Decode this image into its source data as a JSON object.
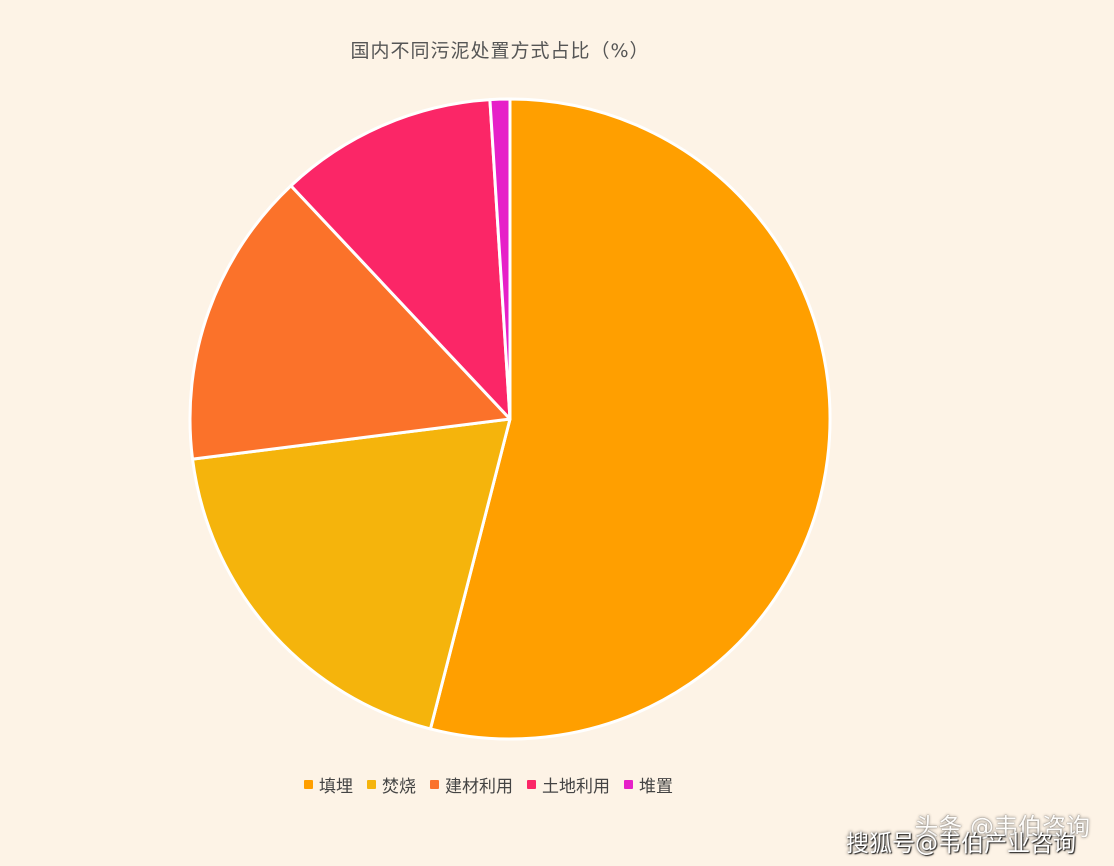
{
  "chart_data": {
    "type": "pie",
    "title": "国内不同污泥处置方式占比（%）",
    "categories": [
      "填埋",
      "焚烧",
      "建材利用",
      "土地利用",
      "堆置"
    ],
    "values": [
      54,
      19,
      15,
      11,
      1
    ],
    "colors": [
      "#ff9f00",
      "#f5b40c",
      "#fb722a",
      "#fb2667",
      "#e620c8"
    ],
    "legend_position": "bottom"
  },
  "watermarks": {
    "line1": "头条 @韦伯咨询",
    "line2": "搜狐号@韦伯产业咨询"
  }
}
